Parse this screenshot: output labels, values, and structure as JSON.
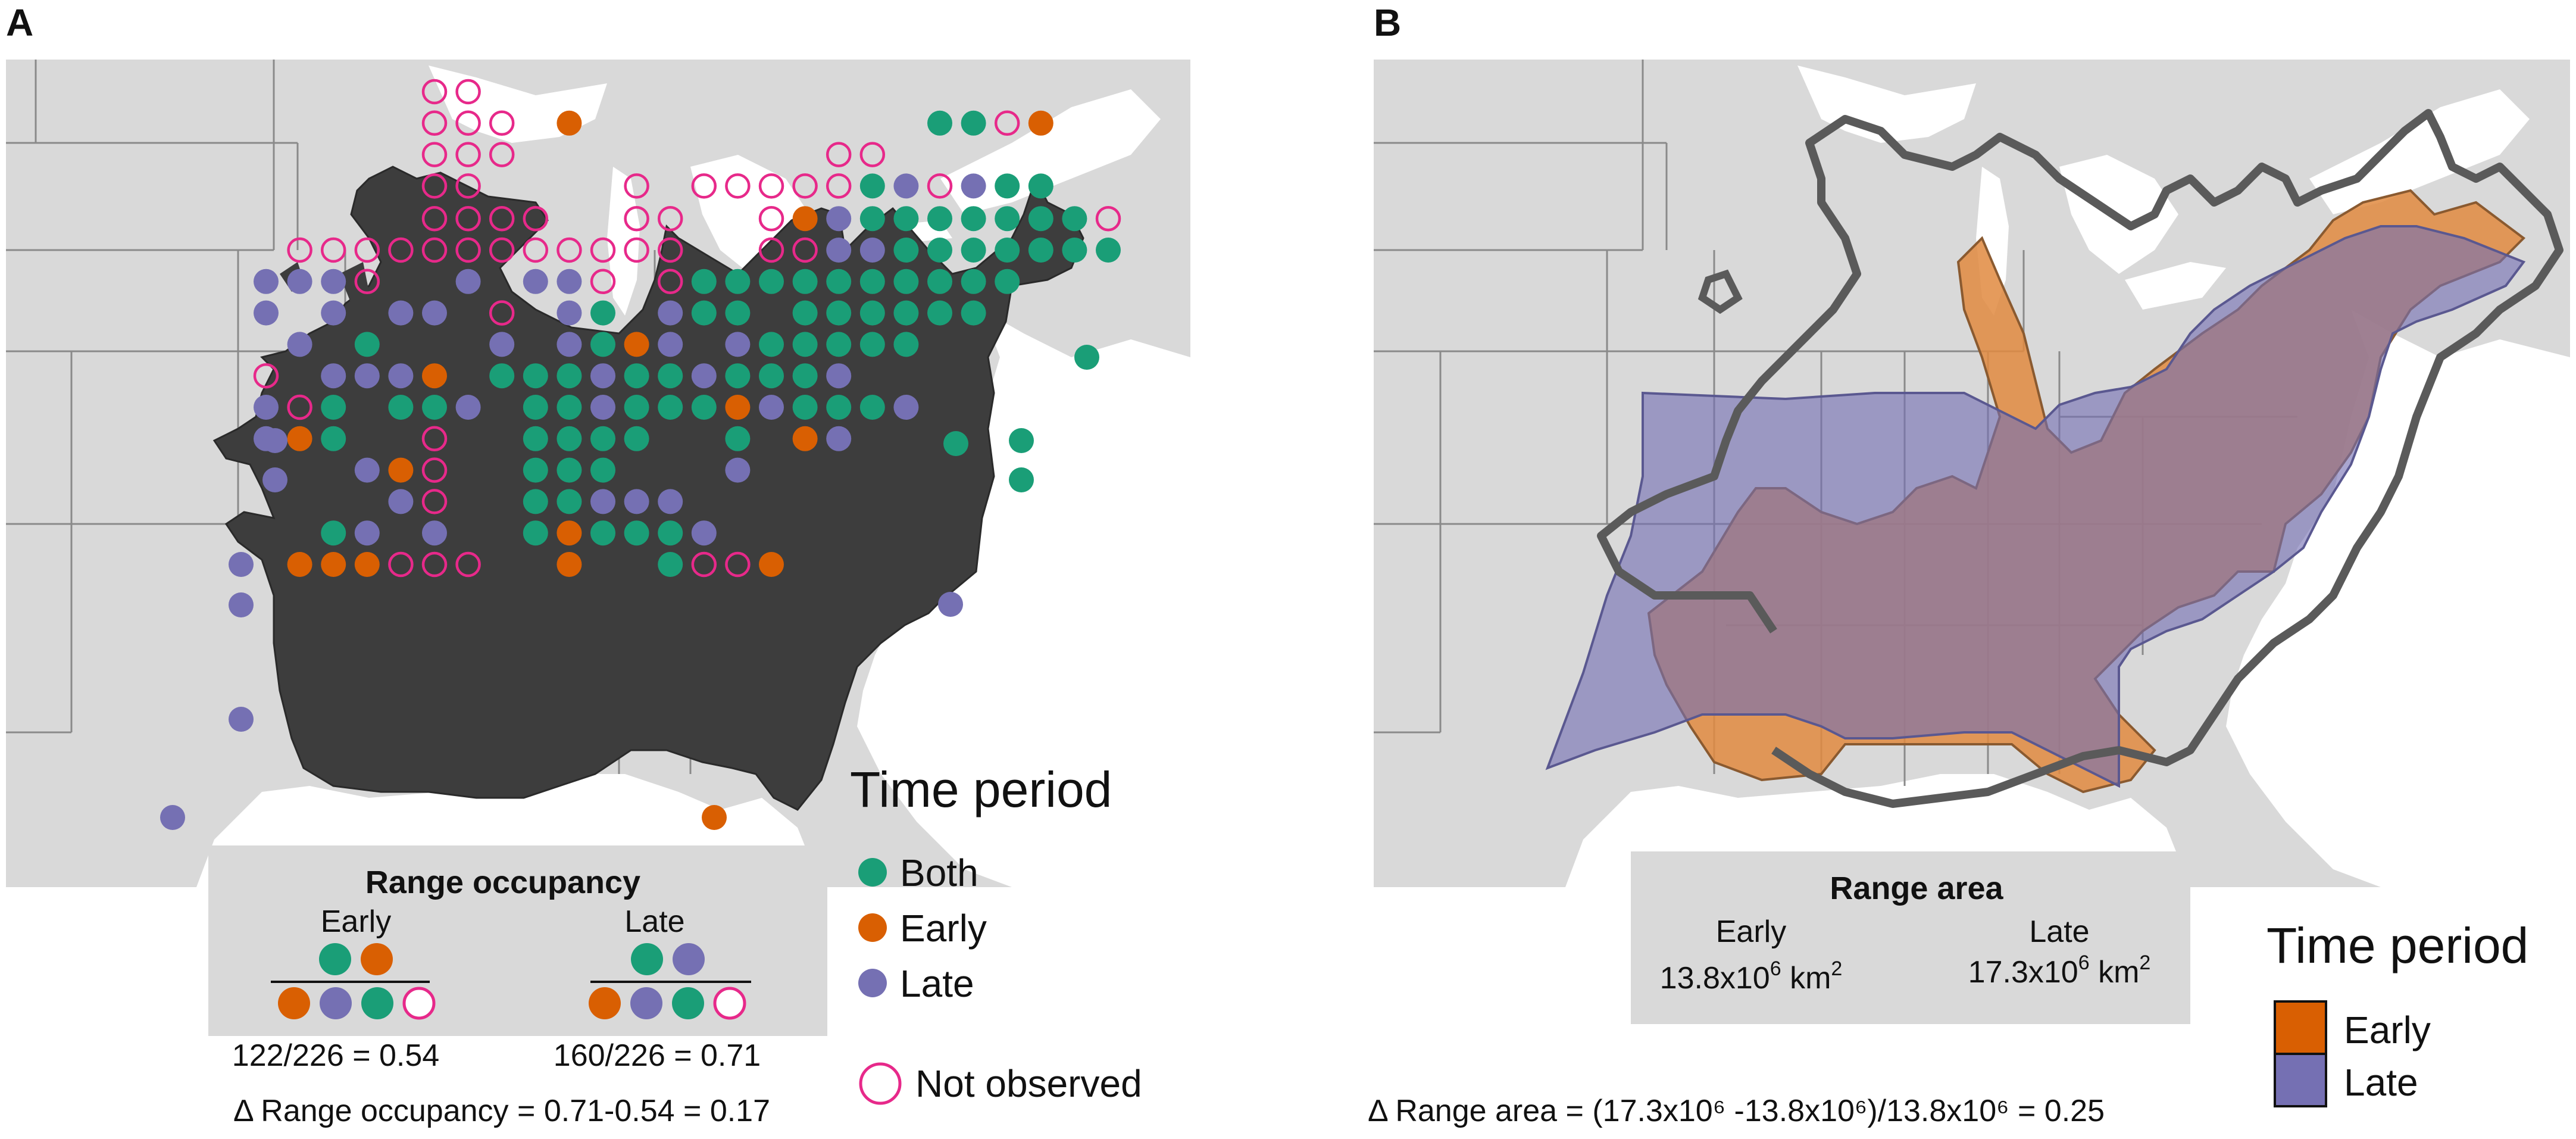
{
  "chart_data": [
    {
      "panel": "A",
      "type": "scatter",
      "description_type": "grid occupancy map",
      "legend": {
        "title": "Time period",
        "items": [
          {
            "label": "Both",
            "color": "#1a9e77"
          },
          {
            "label": "Early",
            "color": "#d95f02"
          },
          {
            "label": "Late",
            "color": "#7570b3"
          },
          {
            "label": "Not observed",
            "color": "#e7298a"
          }
        ]
      },
      "title": "Range occupancy",
      "early_label": "Early",
      "late_label": "Late",
      "early_formula": "122/226 = 0.54",
      "late_formula": "160/226 = 0.71",
      "delta_formula": "Δ Range occupancy = 0.71-0.54 = 0.17",
      "counts": {
        "total_cells": 226,
        "early_occupied": 122,
        "late_occupied": 160
      },
      "values": {
        "early": 0.54,
        "late": 0.71,
        "delta": 0.17
      },
      "example_fraction": {
        "early": {
          "numerator": [
            "Both",
            "Early"
          ],
          "denominator": [
            "Early",
            "Late",
            "Both",
            "Not observed"
          ]
        },
        "late": {
          "numerator": [
            "Both",
            "Late"
          ],
          "denominator": [
            "Early",
            "Late",
            "Both",
            "Not observed"
          ]
        }
      }
    },
    {
      "panel": "B",
      "type": "area",
      "description_type": "range polygon map",
      "legend": {
        "title": "Time period",
        "items": [
          {
            "label": "Early",
            "color": "#d95f02"
          },
          {
            "label": "Late",
            "color": "#7570b3"
          }
        ]
      },
      "title": "Range area",
      "early_label": "Early",
      "late_label": "Late",
      "early_value": "13.8x10",
      "late_value": "17.3x10",
      "exponent": "6",
      "unit": "km",
      "unit_exp": "2",
      "values_km2": {
        "early": 13800000,
        "late": 17300000,
        "delta": 0.25
      },
      "delta_formula": "Δ Range area = (17.3x10⁶ -13.8x10⁶)/13.8x10⁶ = 0.25"
    }
  ],
  "panel_labels": {
    "a": "A",
    "b": "B"
  },
  "colors": {
    "both": "#1a9e77",
    "early": "#d95f02",
    "late": "#7570b3",
    "not_observed": "#e7298a",
    "land": "#d9d9d9",
    "water": "#ffffff",
    "range": "#3d3d3d"
  }
}
